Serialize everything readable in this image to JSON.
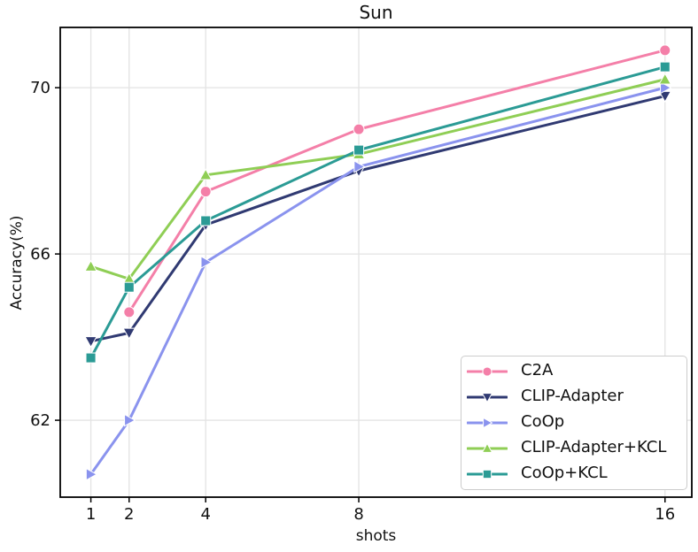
{
  "chart_data": {
    "type": "line",
    "title": "Sun",
    "xlabel": "shots",
    "ylabel": "Accuracy(%)",
    "x": [
      1,
      2,
      4,
      8,
      16
    ],
    "xticks": [
      1,
      2,
      4,
      8,
      16
    ],
    "yticks": [
      62,
      66,
      70
    ],
    "xlim": [
      0.2,
      16.7
    ],
    "ylim": [
      60.15,
      71.45
    ],
    "grid": true,
    "grid_color": "#e3e3e3",
    "spine_color": "#000000",
    "legend_position": "lower right",
    "series": [
      {
        "name": "C2A",
        "color": "#f47fa8",
        "marker": "circle",
        "values": [
          null,
          64.6,
          67.5,
          69.0,
          70.9
        ]
      },
      {
        "name": "CLIP-Adapter",
        "color": "#303a72",
        "marker": "triangle-down",
        "values": [
          63.9,
          64.1,
          66.7,
          68.0,
          69.8
        ]
      },
      {
        "name": "CoOp",
        "color": "#8a93ee",
        "marker": "triangle-right",
        "values": [
          60.7,
          62.0,
          65.8,
          68.1,
          70.0
        ]
      },
      {
        "name": "CLIP-Adapter+KCL",
        "color": "#8fce55",
        "marker": "triangle-up",
        "values": [
          65.7,
          65.4,
          67.9,
          68.4,
          70.2
        ]
      },
      {
        "name": "CoOp+KCL",
        "color": "#2b9b95",
        "marker": "square",
        "values": [
          63.5,
          65.2,
          66.8,
          68.5,
          70.5
        ]
      }
    ]
  }
}
